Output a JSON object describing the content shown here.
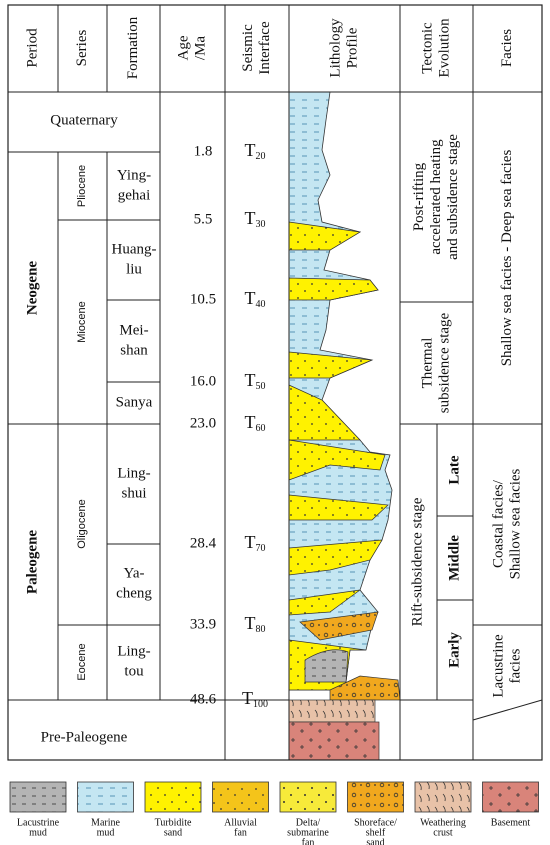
{
  "header": {
    "columns": [
      [
        "Period"
      ],
      [
        "Series"
      ],
      [
        "Formation"
      ],
      [
        "Age",
        "/Ma"
      ],
      [
        "Seismic",
        "Interface"
      ],
      [
        "Lithology",
        "Profile"
      ],
      [
        "Tectonic",
        "Evolution"
      ],
      [
        "Facies"
      ]
    ]
  },
  "periods": [
    "Quaternary",
    "Neogene",
    "Paleogene",
    "Pre-Paleogene"
  ],
  "series": [
    "Pliocene",
    "Miocene",
    "Oligocene",
    "Eocene"
  ],
  "formations": [
    [
      "Ying-",
      "gehai"
    ],
    [
      "Huang-",
      "liu"
    ],
    [
      "Mei-",
      "shan"
    ],
    [
      "Sanya"
    ],
    [
      "Ling-",
      "shui"
    ],
    [
      "Ya-",
      "cheng"
    ],
    [
      "Ling-",
      "tou"
    ]
  ],
  "ages": [
    "1.8",
    "5.5",
    "10.5",
    "16.0",
    "23.0",
    "28.4",
    "33.9",
    "48.6"
  ],
  "seismic": [
    {
      "symbol": "T",
      "index": "20"
    },
    {
      "symbol": "T",
      "index": "30"
    },
    {
      "symbol": "T",
      "index": "40"
    },
    {
      "symbol": "T",
      "index": "50"
    },
    {
      "symbol": "T",
      "index": "60"
    },
    {
      "symbol": "T",
      "index": "70"
    },
    {
      "symbol": "T",
      "index": "80"
    },
    {
      "symbol": "T",
      "index": "100"
    }
  ],
  "tectonic": {
    "stages": [
      [
        "Post-rifting",
        "accelerated heating",
        "and subsidence stage"
      ],
      [
        "Thermal",
        "subsidence stage"
      ],
      [
        "Rift-subsidence stage"
      ]
    ],
    "substages": [
      "Late",
      "Middle",
      "Early"
    ]
  },
  "facies": [
    [
      "Shallow sea facies - Deep sea facies"
    ],
    [
      "Coastal facies/",
      "Shallow sea facies"
    ],
    [
      "Lacustrine",
      "facies"
    ]
  ],
  "legend": [
    [
      "Lacustrine",
      "mud"
    ],
    [
      "Marine",
      "mud"
    ],
    [
      "Turbidite",
      "sand"
    ],
    [
      "Alluvial",
      "fan"
    ],
    [
      "Delta/",
      "submarine",
      "fan"
    ],
    [
      "Shoreface/",
      "shelf",
      "sand"
    ],
    [
      "Weathering",
      "crust"
    ],
    [
      "Basement"
    ]
  ]
}
